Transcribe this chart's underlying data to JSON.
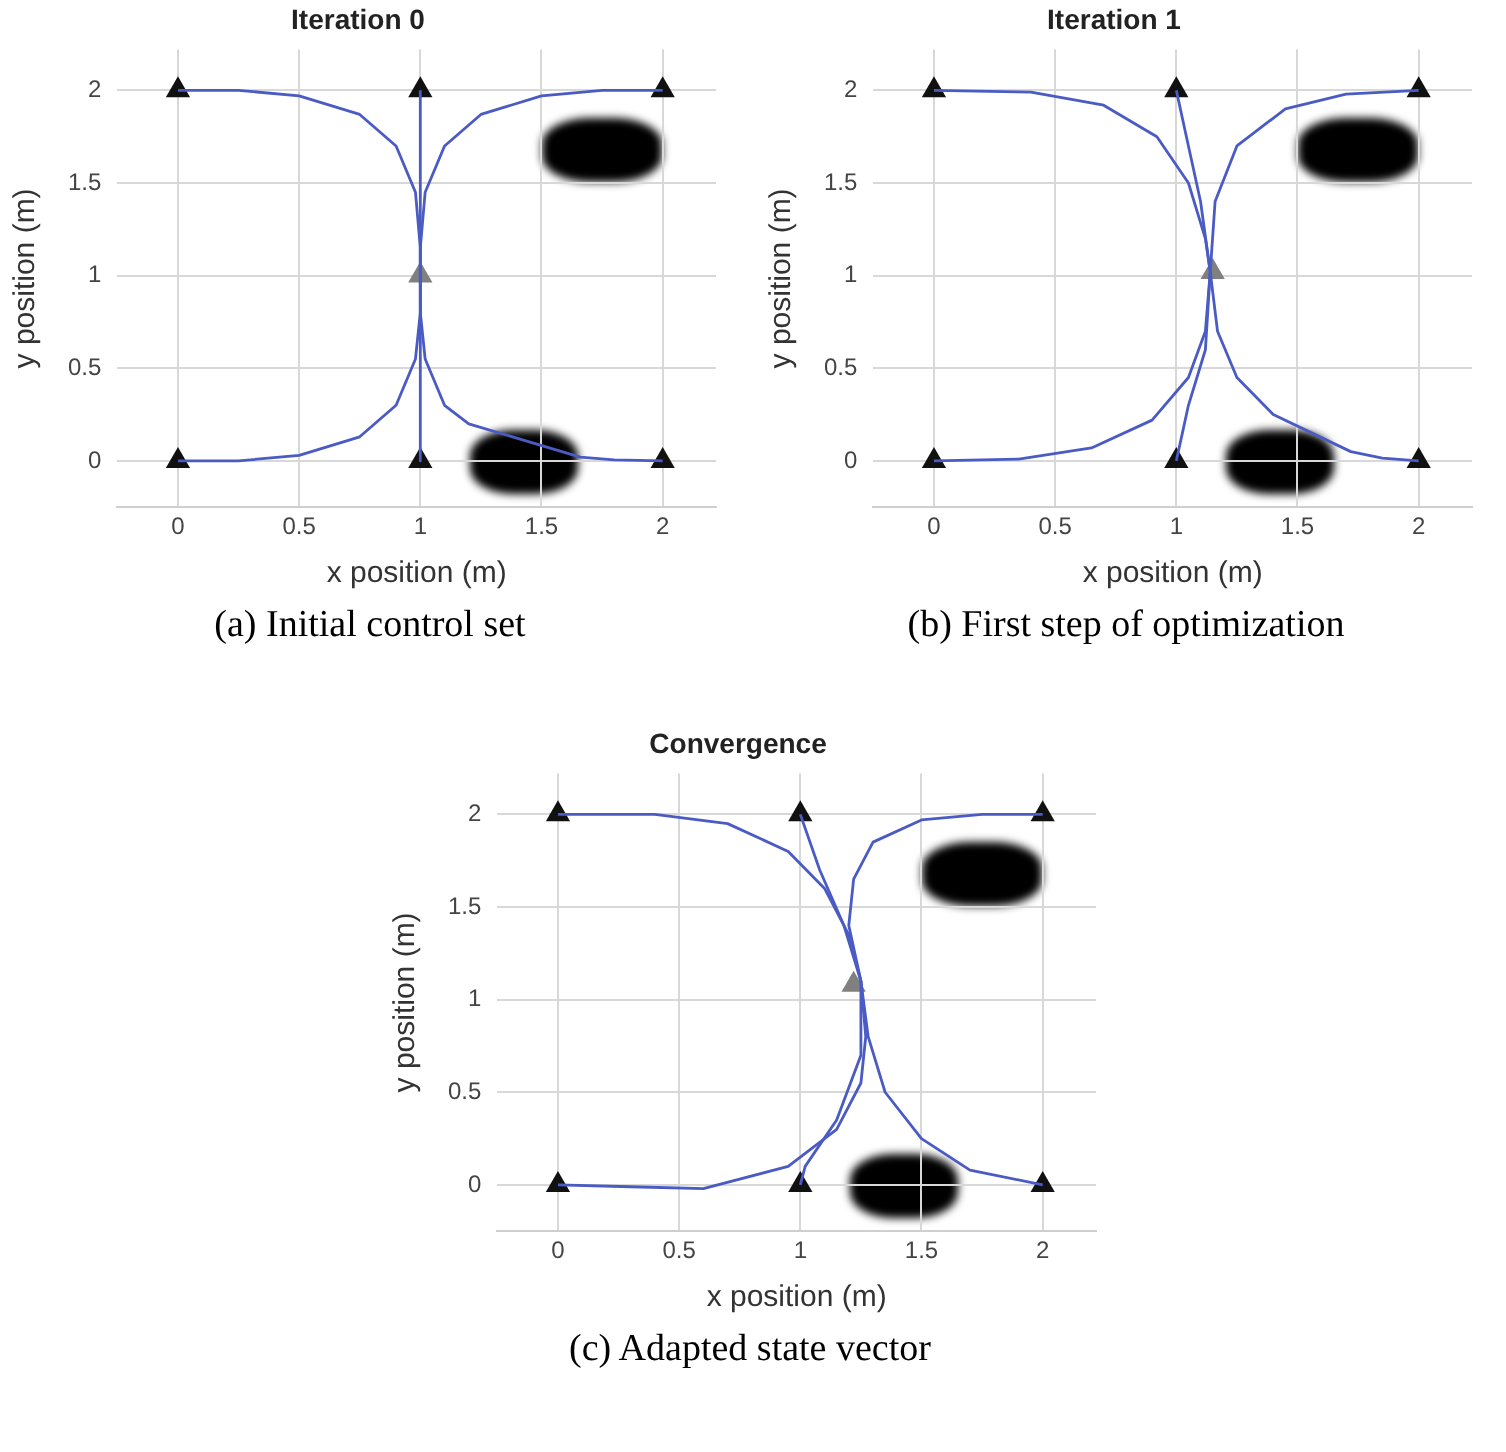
{
  "chart_data": [
    {
      "type": "line",
      "title": "Iteration 0",
      "xlabel": "x position (m)",
      "ylabel": "y position (m)",
      "xlim": [
        -0.25,
        2.22
      ],
      "ylim": [
        -0.25,
        2.22
      ],
      "xticks": [
        0,
        0.5,
        1,
        1.5,
        2
      ],
      "yticks": [
        0,
        0.5,
        1,
        1.5,
        2
      ],
      "grid": true,
      "legend": false,
      "line_style": "solid",
      "annotations": [
        "(a) Initial control set"
      ],
      "series": [
        {
          "color": "#4a5bc4",
          "marker": "none",
          "x": [
            1,
            1,
            0.98,
            0.9,
            0.75,
            0.5,
            0.25,
            0
          ],
          "values": [
            1,
            1.15,
            1.45,
            1.7,
            1.87,
            1.97,
            2,
            2
          ]
        },
        {
          "color": "#4a5bc4",
          "marker": "none",
          "x": [
            1,
            1
          ],
          "values": [
            1,
            2
          ]
        },
        {
          "color": "#4a5bc4",
          "marker": "none",
          "x": [
            1,
            1,
            1.02,
            1.1,
            1.25,
            1.5,
            1.75,
            2
          ],
          "values": [
            1,
            1.15,
            1.45,
            1.7,
            1.87,
            1.97,
            2,
            2
          ]
        },
        {
          "color": "#4a5bc4",
          "marker": "none",
          "x": [
            1,
            1,
            0.98,
            0.9,
            0.75,
            0.5,
            0.25,
            0
          ],
          "values": [
            1,
            0.8,
            0.55,
            0.3,
            0.13,
            0.03,
            0,
            0
          ]
        },
        {
          "color": "#4a5bc4",
          "marker": "none",
          "x": [
            1,
            1
          ],
          "values": [
            1,
            0
          ]
        },
        {
          "color": "#4a5bc4",
          "marker": "none",
          "x": [
            1,
            1,
            1.02,
            1.1,
            1.2,
            1.66,
            1.8,
            2
          ],
          "values": [
            1,
            0.8,
            0.55,
            0.3,
            0.2,
            0.02,
            0.005,
            0
          ]
        },
        {
          "type": "scatter",
          "color": "#111111",
          "marker": "triangle",
          "x": [
            0,
            1,
            2,
            0,
            1,
            2
          ],
          "values": [
            2,
            2,
            2,
            0,
            0,
            0
          ]
        },
        {
          "type": "scatter",
          "color": "#808080",
          "marker": "triangle",
          "x": [
            1
          ],
          "values": [
            1
          ]
        }
      ]
    },
    {
      "type": "line",
      "title": "Iteration 1",
      "xlabel": "x position (m)",
      "ylabel": "y position (m)",
      "xlim": [
        -0.25,
        2.22
      ],
      "ylim": [
        -0.25,
        2.22
      ],
      "xticks": [
        0,
        0.5,
        1,
        1.5,
        2
      ],
      "yticks": [
        0,
        0.5,
        1,
        1.5,
        2
      ],
      "grid": true,
      "legend": false,
      "line_style": "solid",
      "annotations": [
        "(b) First step of optimization"
      ],
      "series": [
        {
          "color": "#4a5bc4",
          "marker": "none",
          "x": [
            1.14,
            1.12,
            1.05,
            0.92,
            0.7,
            0.4,
            0
          ],
          "values": [
            1.02,
            1.2,
            1.5,
            1.75,
            1.92,
            1.99,
            2
          ]
        },
        {
          "color": "#4a5bc4",
          "marker": "none",
          "x": [
            1.14,
            1.1,
            1.05,
            1
          ],
          "values": [
            1.02,
            1.4,
            1.7,
            2
          ]
        },
        {
          "color": "#4a5bc4",
          "marker": "none",
          "x": [
            1.14,
            1.16,
            1.25,
            1.45,
            1.7,
            2
          ],
          "values": [
            1.02,
            1.4,
            1.7,
            1.9,
            1.98,
            2
          ]
        },
        {
          "color": "#4a5bc4",
          "marker": "none",
          "x": [
            1.14,
            1.12,
            1.05,
            0.9,
            0.65,
            0.35,
            0
          ],
          "values": [
            1.02,
            0.7,
            0.45,
            0.22,
            0.07,
            0.01,
            0
          ]
        },
        {
          "color": "#4a5bc4",
          "marker": "none",
          "x": [
            1.14,
            1.12,
            1.05,
            1
          ],
          "values": [
            1.02,
            0.6,
            0.3,
            0
          ]
        },
        {
          "color": "#4a5bc4",
          "marker": "none",
          "x": [
            1.14,
            1.17,
            1.25,
            1.4,
            1.72,
            1.85,
            2
          ],
          "values": [
            1.02,
            0.7,
            0.45,
            0.25,
            0.05,
            0.015,
            0
          ]
        },
        {
          "type": "scatter",
          "color": "#111111",
          "marker": "triangle",
          "x": [
            0,
            1,
            2,
            0,
            1,
            2
          ],
          "values": [
            2,
            2,
            2,
            0,
            0,
            0
          ]
        },
        {
          "type": "scatter",
          "color": "#808080",
          "marker": "triangle",
          "x": [
            1.15
          ],
          "values": [
            1.02
          ]
        }
      ]
    },
    {
      "type": "line",
      "title": "Convergence",
      "xlabel": "x position (m)",
      "ylabel": "y position (m)",
      "xlim": [
        -0.25,
        2.22
      ],
      "ylim": [
        -0.25,
        2.22
      ],
      "xticks": [
        0,
        0.5,
        1,
        1.5,
        2
      ],
      "yticks": [
        0,
        0.5,
        1,
        1.5,
        2
      ],
      "grid": true,
      "legend": false,
      "line_style": "solid",
      "annotations": [
        "(c) Adapted state vector"
      ],
      "series": [
        {
          "color": "#4a5bc4",
          "marker": "none",
          "x": [
            1.25,
            1.2,
            1.1,
            0.95,
            0.7,
            0.4,
            0
          ],
          "values": [
            1.1,
            1.35,
            1.6,
            1.8,
            1.95,
            2,
            2
          ]
        },
        {
          "color": "#4a5bc4",
          "marker": "none",
          "x": [
            1.25,
            1.18,
            1.08,
            1
          ],
          "values": [
            1.1,
            1.4,
            1.7,
            2
          ]
        },
        {
          "color": "#4a5bc4",
          "marker": "none",
          "x": [
            1.25,
            1.2,
            1.22,
            1.3,
            1.5,
            1.75,
            2
          ],
          "values": [
            1.1,
            1.4,
            1.65,
            1.85,
            1.97,
            2,
            2
          ]
        },
        {
          "color": "#4a5bc4",
          "marker": "none",
          "x": [
            1.25,
            1.27,
            1.25,
            1.15,
            0.95,
            0.6,
            0.3,
            0
          ],
          "values": [
            1.1,
            0.8,
            0.55,
            0.3,
            0.1,
            -0.02,
            -0.01,
            0
          ]
        },
        {
          "color": "#4a5bc4",
          "marker": "none",
          "x": [
            1.25,
            1.25,
            1.15,
            1.02,
            1
          ],
          "values": [
            1.1,
            0.7,
            0.35,
            0.1,
            0
          ]
        },
        {
          "color": "#4a5bc4",
          "marker": "none",
          "x": [
            1.25,
            1.28,
            1.35,
            1.5,
            1.7,
            2
          ],
          "values": [
            1.1,
            0.8,
            0.5,
            0.25,
            0.08,
            0
          ]
        },
        {
          "type": "scatter",
          "color": "#111111",
          "marker": "triangle",
          "x": [
            0,
            1,
            2,
            0,
            1,
            2
          ],
          "values": [
            2,
            2,
            2,
            0,
            0,
            0
          ]
        },
        {
          "type": "scatter",
          "color": "#808080",
          "marker": "triangle",
          "x": [
            1.22
          ],
          "values": [
            1.08
          ]
        }
      ]
    }
  ]
}
